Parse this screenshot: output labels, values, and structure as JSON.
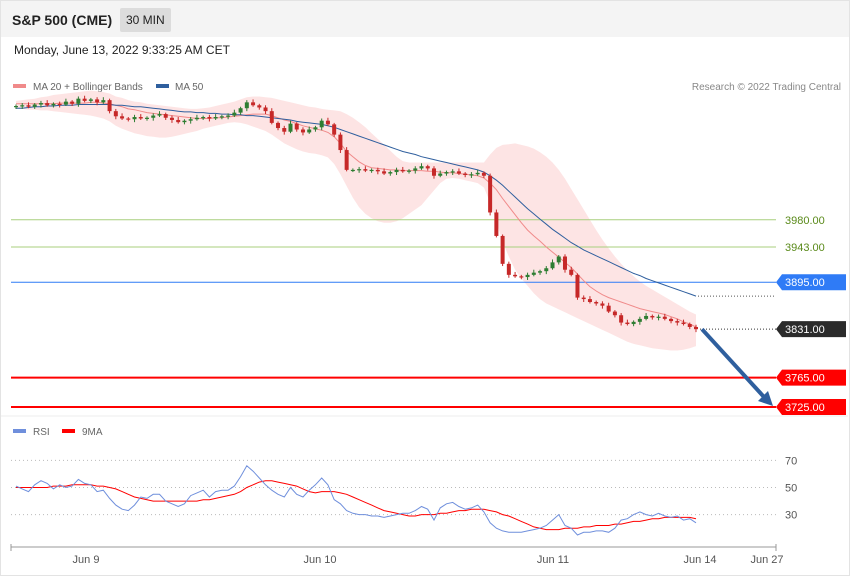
{
  "header": {
    "title": "S&P 500 (CME)",
    "interval": "30 MIN"
  },
  "datetime": "Monday, June 13, 2022 9:33:25 AM CET",
  "legend": {
    "ma20": "MA 20 + Bollinger Bands",
    "ma50": "MA 50",
    "rsi": "RSI",
    "rsi_ma": "9MA",
    "credit": "Research © 2022 Trading Central"
  },
  "colors": {
    "ma20": "#f08a8a",
    "ma50": "#2f5f9e",
    "band": "#fde3e3",
    "bull": "#2e7d32",
    "bear": "#c62828",
    "rsi": "#6f8fdc",
    "resistance": "#a8cf7e",
    "pivot": "#2f7bf6",
    "support": "#ff0000",
    "last": "#2b2b2b",
    "arrow": "#2f5f9e"
  },
  "chart_data": [
    {
      "type": "candlestick",
      "x_axis": {
        "ticks": [
          "Jun 9",
          "Jun 10",
          "Jun 11",
          "Jun 14",
          "Jun 27"
        ]
      },
      "levels": [
        {
          "value": 3980.0,
          "label": "3980.00",
          "kind": "resistance"
        },
        {
          "value": 3943.0,
          "label": "3943.00",
          "kind": "resistance"
        },
        {
          "value": 3895.0,
          "label": "3895.00",
          "kind": "pivot"
        },
        {
          "value": 3831.0,
          "label": "3831.00",
          "kind": "last"
        },
        {
          "value": 3765.0,
          "label": "3765.00",
          "kind": "support"
        },
        {
          "value": 3725.0,
          "label": "3725.00",
          "kind": "support"
        }
      ],
      "y_range": [
        3710,
        4150
      ],
      "close": [
        4135,
        4136,
        4134,
        4137,
        4139,
        4136,
        4138,
        4137,
        4141,
        4138,
        4145,
        4142,
        4144,
        4140,
        4143,
        4128,
        4121,
        4118,
        4117,
        4120,
        4118,
        4119,
        4122,
        4124,
        4119,
        4116,
        4113,
        4115,
        4117,
        4119,
        4120,
        4118,
        4120,
        4121,
        4122,
        4126,
        4132,
        4140,
        4136,
        4133,
        4128,
        4112,
        4105,
        4100,
        4111,
        4103,
        4099,
        4103,
        4106,
        4115,
        4110,
        4096,
        4075,
        4048,
        4048,
        4049,
        4047,
        4048,
        4046,
        4043,
        4045,
        4048,
        4046,
        4047,
        4050,
        4053,
        4050,
        4040,
        4043,
        4045,
        4046,
        4043,
        4041,
        4042,
        4044,
        4040,
        3990,
        3958,
        3920,
        3905,
        3903,
        3902,
        3905,
        3908,
        3910,
        3914,
        3922,
        3930,
        3912,
        3905,
        3874,
        3872,
        3868,
        3866,
        3863,
        3855,
        3850,
        3840,
        3838,
        3841,
        3845,
        3849,
        3847,
        3848,
        3845,
        3842,
        3840,
        3838,
        3834,
        3831
      ],
      "ma20": [
        4138,
        4138,
        4138,
        4138,
        4138,
        4138,
        4138,
        4139,
        4139,
        4139,
        4139,
        4139,
        4140,
        4140,
        4139,
        4138,
        4136,
        4134,
        4131,
        4130,
        4128,
        4126,
        4125,
        4124,
        4123,
        4122,
        4121,
        4120,
        4119,
        4118,
        4118,
        4118,
        4119,
        4119,
        4120,
        4121,
        4122,
        4123,
        4124,
        4124,
        4124,
        4122,
        4119,
        4116,
        4114,
        4111,
        4108,
        4106,
        4104,
        4102,
        4099,
        4093,
        4084,
        4073,
        4066,
        4059,
        4054,
        4051,
        4050,
        4049,
        4048,
        4048,
        4047,
        4047,
        4047,
        4047,
        4046,
        4046,
        4045,
        4044,
        4044,
        4043,
        4042,
        4041,
        4040,
        4037,
        4030,
        4021,
        4009,
        3998,
        3987,
        3976,
        3966,
        3958,
        3951,
        3943,
        3936,
        3929,
        3922,
        3915,
        3906,
        3897,
        3889,
        3883,
        3878,
        3874,
        3871,
        3868,
        3865,
        3862,
        3859,
        3857,
        3855,
        3853,
        3851,
        3848,
        3845,
        3841,
        3838,
        3834
      ],
      "ma50": [
        4132,
        4132,
        4133,
        4134,
        4134,
        4135,
        4135,
        4136,
        4136,
        4136,
        4137,
        4137,
        4137,
        4137,
        4137,
        4137,
        4136,
        4136,
        4135,
        4134,
        4134,
        4133,
        4132,
        4131,
        4130,
        4129,
        4128,
        4127,
        4127,
        4126,
        4126,
        4125,
        4125,
        4124,
        4124,
        4123,
        4123,
        4122,
        4122,
        4121,
        4120,
        4119,
        4118,
        4117,
        4116,
        4114,
        4113,
        4112,
        4111,
        4110,
        4108,
        4106,
        4103,
        4100,
        4097,
        4094,
        4091,
        4088,
        4085,
        4082,
        4079,
        4076,
        4073,
        4071,
        4069,
        4066,
        4064,
        4062,
        4060,
        4058,
        4056,
        4054,
        4052,
        4050,
        4048,
        4045,
        4040,
        4034,
        4027,
        4019,
        4011,
        4003,
        3995,
        3988,
        3981,
        3974,
        3967,
        3961,
        3955,
        3949,
        3944,
        3939,
        3935,
        3931,
        3927,
        3923,
        3919,
        3915,
        3911,
        3907,
        3904,
        3900,
        3897,
        3894,
        3891,
        3888,
        3885,
        3882,
        3879,
        3876
      ],
      "band_upper": [
        4142,
        4143,
        4144,
        4145,
        4147,
        4148,
        4150,
        4151,
        4152,
        4153,
        4154,
        4155,
        4156,
        4155,
        4154,
        4152,
        4148,
        4146,
        4143,
        4141,
        4140,
        4138,
        4137,
        4136,
        4135,
        4134,
        4133,
        4132,
        4131,
        4131,
        4132,
        4133,
        4135,
        4137,
        4139,
        4141,
        4144,
        4147,
        4148,
        4148,
        4147,
        4146,
        4144,
        4142,
        4140,
        4138,
        4136,
        4134,
        4133,
        4131,
        4130,
        4129,
        4128,
        4124,
        4119,
        4113,
        4106,
        4098,
        4090,
        4082,
        4074,
        4066,
        4060,
        4058,
        4058,
        4058,
        4058,
        4058,
        4058,
        4058,
        4058,
        4058,
        4058,
        4058,
        4058,
        4058,
        4069,
        4078,
        4082,
        4083,
        4084,
        4082,
        4080,
        4077,
        4072,
        4066,
        4058,
        4048,
        4036,
        4022,
        4008,
        3994,
        3980,
        3966,
        3953,
        3941,
        3930,
        3920,
        3911,
        3903,
        3896,
        3890,
        3885,
        3880,
        3875,
        3870,
        3865,
        3860,
        3855,
        3851
      ],
      "band_lower": [
        4131,
        4131,
        4130,
        4130,
        4129,
        4129,
        4128,
        4127,
        4126,
        4125,
        4124,
        4123,
        4122,
        4120,
        4118,
        4114,
        4108,
        4104,
        4101,
        4098,
        4096,
        4094,
        4093,
        4092,
        4092,
        4093,
        4095,
        4097,
        4099,
        4101,
        4104,
        4106,
        4108,
        4110,
        4112,
        4113,
        4112,
        4110,
        4107,
        4104,
        4101,
        4096,
        4090,
        4084,
        4080,
        4076,
        4073,
        4071,
        4070,
        4068,
        4065,
        4056,
        4042,
        4026,
        4010,
        3997,
        3988,
        3982,
        3978,
        3976,
        3976,
        3978,
        3982,
        3988,
        3994,
        4000,
        4010,
        4020,
        4030,
        4036,
        4037,
        4036,
        4034,
        4032,
        4030,
        4024,
        4004,
        3978,
        3950,
        3930,
        3912,
        3900,
        3890,
        3880,
        3872,
        3866,
        3862,
        3858,
        3854,
        3850,
        3846,
        3842,
        3838,
        3834,
        3830,
        3826,
        3822,
        3818,
        3814,
        3811,
        3809,
        3807,
        3805,
        3804,
        3803,
        3802,
        3802,
        3803,
        3805,
        3808
      ]
    },
    {
      "type": "line",
      "name": "RSI",
      "y_ticks": [
        70,
        50,
        30
      ],
      "y_range": [
        15,
        85
      ],
      "rsi": [
        51,
        49,
        47,
        52,
        55,
        53,
        49,
        52,
        50,
        51,
        56,
        53,
        52,
        47,
        48,
        42,
        37,
        34,
        33,
        37,
        43,
        42,
        45,
        45,
        40,
        38,
        36,
        38,
        44,
        46,
        48,
        43,
        47,
        48,
        48,
        51,
        58,
        66,
        62,
        57,
        52,
        48,
        45,
        43,
        50,
        45,
        43,
        48,
        52,
        57,
        52,
        41,
        38,
        33,
        31,
        30,
        30,
        29,
        29,
        28,
        29,
        30,
        31,
        31,
        33,
        36,
        34,
        26,
        35,
        38,
        39,
        36,
        34,
        35,
        37,
        32,
        24,
        20,
        18,
        17,
        17,
        17,
        18,
        19,
        20,
        22,
        26,
        30,
        22,
        20,
        15,
        17,
        17,
        18,
        18,
        17,
        20,
        26,
        27,
        30,
        32,
        30,
        29,
        31,
        29,
        28,
        29,
        26,
        27,
        24
      ],
      "ma9": [
        50,
        50,
        50,
        50,
        50,
        50,
        51,
        51,
        51,
        52,
        52,
        52,
        52,
        51,
        51,
        50,
        49,
        47,
        45,
        43,
        42,
        41,
        40,
        40,
        40,
        40,
        40,
        40,
        40,
        40,
        41,
        41,
        42,
        43,
        44,
        45,
        47,
        50,
        52,
        54,
        55,
        55,
        54,
        53,
        52,
        51,
        49,
        47,
        46,
        47,
        47,
        47,
        46,
        45,
        43,
        41,
        39,
        37,
        35,
        33,
        32,
        31,
        30,
        29,
        29,
        30,
        30,
        30,
        31,
        31,
        32,
        33,
        33,
        34,
        34,
        34,
        33,
        32,
        30,
        29,
        27,
        25,
        23,
        21,
        20,
        19,
        19,
        19,
        20,
        20,
        20,
        21,
        21,
        22,
        22,
        22,
        23,
        23,
        24,
        25,
        25,
        26,
        27,
        27,
        28,
        28,
        28,
        28,
        28,
        27
      ]
    }
  ]
}
